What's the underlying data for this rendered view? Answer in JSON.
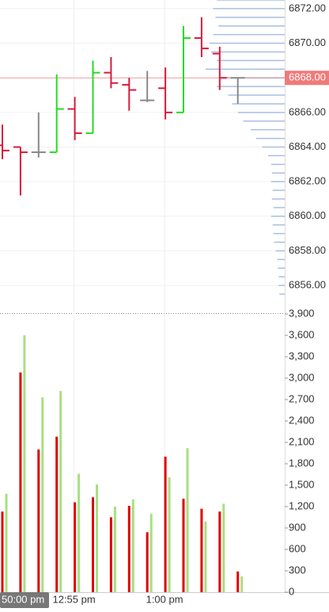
{
  "chart_data": [
    {
      "type": "ohlc",
      "categories": [
        null,
        null,
        null,
        null,
        "12:55 pm",
        null,
        null,
        null,
        null,
        "1:00 pm",
        null,
        null,
        null,
        null
      ],
      "open": [
        6864.1,
        6864.0,
        6863.7,
        6863.7,
        6866.2,
        6864.8,
        6868.3,
        6867.6,
        6866.7,
        6867.4,
        6866.0,
        6870.3,
        6869.4,
        6868.0
      ],
      "high": [
        6865.3,
        6864.0,
        6866.0,
        6868.2,
        6866.9,
        6869.0,
        6869.2,
        6868.0,
        6868.4,
        6868.6,
        6871.0,
        6871.5,
        6869.8,
        6868.0
      ],
      "low": [
        6863.3,
        6861.2,
        6863.4,
        6863.7,
        6864.4,
        6864.8,
        6867.4,
        6866.1,
        6866.6,
        6865.6,
        6866.0,
        6869.2,
        6867.3,
        6866.5
      ],
      "close": [
        6863.8,
        6863.7,
        6863.7,
        6866.2,
        6864.8,
        6868.3,
        6867.7,
        6867.3,
        6866.7,
        6866.0,
        6870.3,
        6869.7,
        6868.0,
        6868.0
      ],
      "up_color": "#22dd22",
      "down_color": "#d81b3c",
      "flat_color": "#888888",
      "ylim": [
        6854.4,
        6872.5
      ],
      "yticks": [
        {
          "value": 6856,
          "label": "6856.00"
        },
        {
          "value": 6858,
          "label": "6858.00"
        },
        {
          "value": 6860,
          "label": "6860.00"
        },
        {
          "value": 6862,
          "label": "6862.00"
        },
        {
          "value": 6864,
          "label": "6864.00"
        },
        {
          "value": 6866,
          "label": "6866.00"
        },
        {
          "value": 6868,
          "label": "6868.00"
        },
        {
          "value": 6870,
          "label": "6870.00"
        },
        {
          "value": 6872,
          "label": "6872.00"
        }
      ],
      "current_price": {
        "value": 6868,
        "label": "6868.00",
        "color": "#f07a7a"
      },
      "crosshair_label": "50:00 pm",
      "profile": {
        "color": "#a9bfe0",
        "prices": [
          6872.5,
          6872,
          6871.5,
          6871,
          6870.5,
          6870,
          6869.5,
          6869,
          6868.5,
          6868,
          6867.5,
          6867,
          6866.5,
          6866,
          6865.5,
          6865,
          6864.5,
          6864,
          6863.5,
          6863,
          6862.5,
          6862,
          6861.5,
          6861,
          6860.5,
          6860,
          6859.5,
          6859,
          6858.5,
          6858,
          6857.5,
          6857,
          6856.5,
          6856,
          6855.5
        ],
        "volumes": [
          90,
          95,
          92,
          88,
          95,
          100,
          98,
          90,
          105,
          85,
          90,
          75,
          70,
          62,
          55,
          45,
          38,
          30,
          22,
          18,
          17,
          18,
          16,
          17,
          15,
          18,
          16,
          15,
          14,
          12,
          10,
          9,
          8,
          8,
          7
        ]
      }
    },
    {
      "type": "bar",
      "series": [
        {
          "color": "#e00000",
          "values": [
            1130,
            3080,
            2000,
            2180,
            1260,
            1330,
            1050,
            1210,
            840,
            1900,
            1310,
            1170,
            1130,
            290
          ]
        },
        {
          "color": "#a8e080",
          "values": [
            1380,
            3600,
            2730,
            2820,
            1660,
            1510,
            1200,
            1300,
            1100,
            1610,
            2020,
            990,
            1240,
            220
          ]
        }
      ],
      "ylim": [
        0,
        3900
      ],
      "yticks": [
        0,
        300,
        600,
        900,
        {
          "value": 1200,
          "label": "1,200"
        },
        {
          "value": 1500,
          "label": "1,500"
        },
        {
          "value": 1800,
          "label": "1,800"
        },
        {
          "value": 2100,
          "label": "2,100"
        },
        {
          "value": 2400,
          "label": "2,400"
        },
        {
          "value": 2700,
          "label": "2,700"
        },
        {
          "value": 3000,
          "label": "3,000"
        },
        {
          "value": 3300,
          "label": "3,300"
        },
        {
          "value": 3600,
          "label": "3,600"
        },
        {
          "value": 3900,
          "label": "3,900"
        }
      ]
    }
  ]
}
